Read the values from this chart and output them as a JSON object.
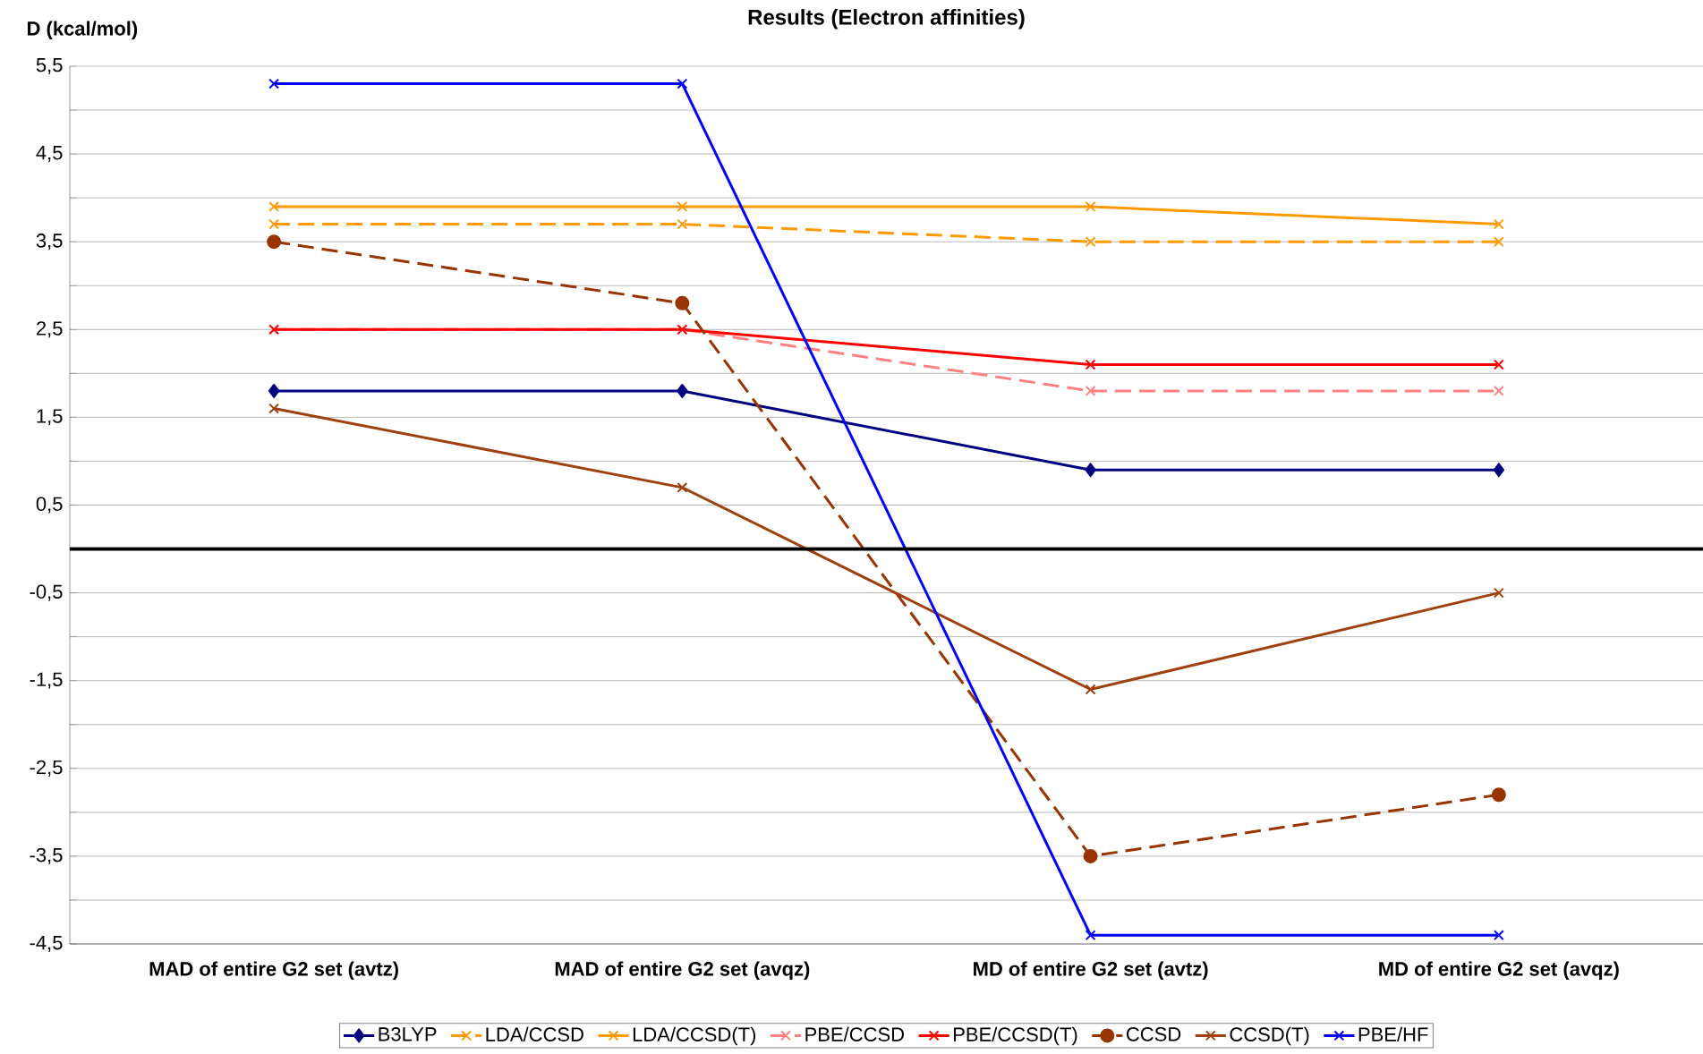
{
  "chart_data": {
    "type": "line",
    "title": "Results (Electron affinities)",
    "ylabel": "D (kcal/mol)",
    "categories": [
      "MAD of entire G2 set (avtz)",
      "MAD of entire G2 set (avqz)",
      "MD of entire G2 set (avtz)",
      "MD of entire G2 set (avqz)"
    ],
    "series": [
      {
        "name": "B3LYP",
        "color": "#000080",
        "marker": "diamond",
        "line_style": "solid",
        "values": [
          1.8,
          1.8,
          0.9,
          0.9
        ]
      },
      {
        "name": "LDA/CCSD",
        "color": "#ff9900",
        "marker": "cross",
        "line_style": "dashed",
        "values": [
          3.7,
          3.7,
          3.5,
          3.5
        ]
      },
      {
        "name": "LDA/CCSD(T)",
        "color": "#ff9900",
        "marker": "cross",
        "line_style": "solid",
        "values": [
          3.9,
          3.9,
          3.9,
          3.7
        ]
      },
      {
        "name": "PBE/CCSD",
        "color": "#ff8080",
        "marker": "cross",
        "line_style": "dashed",
        "values": [
          2.5,
          2.5,
          1.8,
          1.8
        ]
      },
      {
        "name": "PBE/CCSD(T)",
        "color": "#ff0000",
        "marker": "cross",
        "line_style": "solid",
        "values": [
          2.5,
          2.5,
          2.1,
          2.1
        ]
      },
      {
        "name": "CCSD",
        "color": "#993300",
        "marker": "circle",
        "line_style": "dashed",
        "values": [
          3.5,
          2.8,
          -3.5,
          -2.8
        ]
      },
      {
        "name": "CCSD(T)",
        "color": "#a0400f",
        "marker": "cross",
        "line_style": "solid",
        "values": [
          1.6,
          0.7,
          -1.6,
          -0.5
        ]
      },
      {
        "name": "PBE/HF",
        "color": "#0000ff",
        "marker": "cross",
        "line_style": "solid",
        "values": [
          5.3,
          5.3,
          -4.4,
          -4.4
        ]
      }
    ],
    "ylim": [
      -4.5,
      5.5
    ],
    "yticks": [
      {
        "value": -4.5,
        "label": "-4,5"
      },
      {
        "value": -4,
        "label": null
      },
      {
        "value": -3.5,
        "label": "-3,5"
      },
      {
        "value": -3,
        "label": null
      },
      {
        "value": -2.5,
        "label": "-2,5"
      },
      {
        "value": -2,
        "label": null
      },
      {
        "value": -1.5,
        "label": "-1,5"
      },
      {
        "value": -1,
        "label": null
      },
      {
        "value": -0.5,
        "label": "-0,5"
      },
      {
        "value": 0,
        "label": null
      },
      {
        "value": 0.5,
        "label": "0,5"
      },
      {
        "value": 1,
        "label": null
      },
      {
        "value": 1.5,
        "label": "1,5"
      },
      {
        "value": 2,
        "label": null
      },
      {
        "value": 2.5,
        "label": "2,5"
      },
      {
        "value": 3,
        "label": null
      },
      {
        "value": 3.5,
        "label": "3,5"
      },
      {
        "value": 4,
        "label": null
      },
      {
        "value": 4.5,
        "label": "4,5"
      },
      {
        "value": 5,
        "label": null
      },
      {
        "value": 5.5,
        "label": "5,5"
      }
    ],
    "ref_lines": [
      {
        "axis": "y",
        "value": 0,
        "color": "#000000"
      }
    ],
    "grid": "y",
    "legend": "bottom"
  }
}
